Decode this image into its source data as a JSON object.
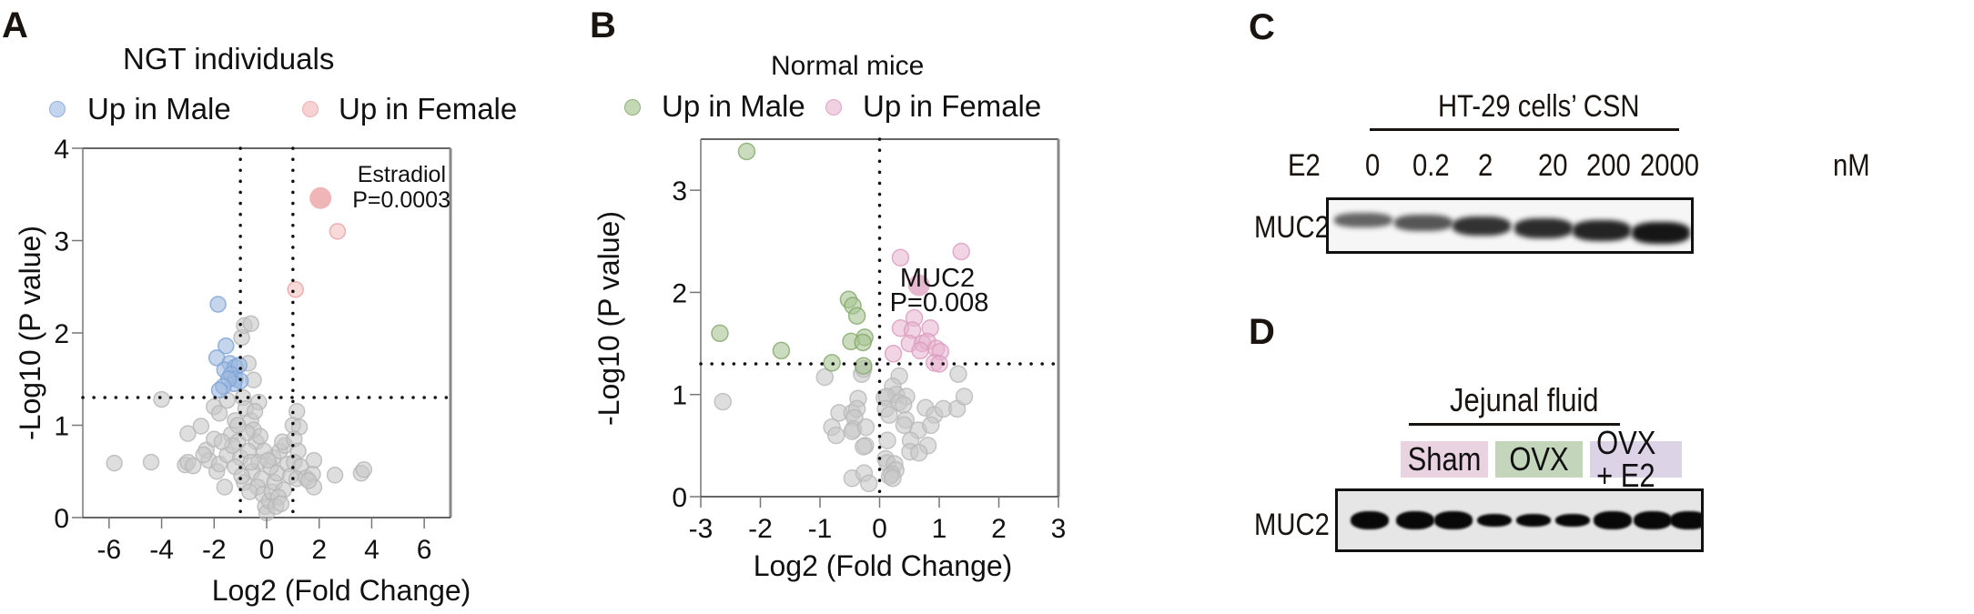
{
  "panels": {
    "A": {
      "letter": "A"
    },
    "B": {
      "letter": "B"
    },
    "C": {
      "letter": "C",
      "header": "HT-29 cells’ CSN",
      "treatment_label": "E2",
      "doses": [
        "0",
        "0.2",
        "2",
        "20",
        "200",
        "2000"
      ],
      "unit": "nM",
      "protein": "MUC2",
      "band_intensity_relative": [
        0.45,
        0.55,
        0.8,
        0.85,
        0.9,
        1.0
      ]
    },
    "D": {
      "letter": "D",
      "header": "Jejunal fluid",
      "protein": "MUC2",
      "groups": [
        {
          "label": "Sham",
          "color": "#ead3e0",
          "lanes": 3
        },
        {
          "label": "OVX",
          "color": "#c3d6bc",
          "lanes": 3
        },
        {
          "label": "OVX + E2",
          "color": "#ddd3e6",
          "lanes": 3
        }
      ],
      "band_intensity_relative": [
        1.0,
        1.0,
        0.95,
        0.55,
        0.5,
        0.5,
        0.95,
        0.95,
        0.95
      ]
    }
  },
  "colors": {
    "male_A": "#9db9e0",
    "female_A": "#f1b5b8",
    "male_B": "#a9c493",
    "female_B": "#e7b2cf",
    "neutral": "#c8c8c8"
  },
  "chart_data": [
    {
      "type": "scatter",
      "title": "NGT individuals",
      "xlabel": "Log2 (Fold Change)",
      "ylabel": "-Log10 (P value)",
      "xlim": [
        -7,
        7
      ],
      "ylim": [
        0,
        4
      ],
      "xticks": [
        "-6",
        "-4",
        "-2",
        "0",
        "2",
        "4",
        "6"
      ],
      "yticks": [
        "0",
        "1",
        "2",
        "3",
        "4"
      ],
      "thresholds": {
        "x": [
          -1,
          1
        ],
        "y": 1.3
      },
      "legend": [
        {
          "name": "Up in Male",
          "color": "#9db9e0"
        },
        {
          "name": "Up in Female",
          "color": "#f1b5b8"
        }
      ],
      "legend_position": "top",
      "annotation": {
        "name": "Estradiol",
        "text": "P=0.0003",
        "x": 2.05,
        "y": 3.46
      },
      "series": [
        {
          "name": "Up in Female",
          "points": [
            [
              2.05,
              3.46,
              "big"
            ],
            [
              2.7,
              3.1
            ],
            [
              1.1,
              2.47
            ]
          ]
        },
        {
          "name": "Up in Male",
          "points": [
            [
              -1.85,
              2.31
            ],
            [
              -1.55,
              1.86
            ],
            [
              -1.9,
              1.73
            ],
            [
              -1.4,
              1.67
            ],
            [
              -1.6,
              1.6
            ],
            [
              -1.2,
              1.63
            ],
            [
              -1.05,
              1.65
            ],
            [
              -1.35,
              1.55
            ],
            [
              -1.2,
              1.5
            ],
            [
              -1.0,
              1.48
            ],
            [
              -1.25,
              1.45
            ],
            [
              -1.45,
              1.5
            ],
            [
              -1.65,
              1.42
            ],
            [
              -1.8,
              1.38
            ]
          ]
        },
        {
          "name": "Not significant",
          "points": [
            [
              -4.0,
              1.28
            ],
            [
              -5.8,
              0.59
            ],
            [
              -4.4,
              0.6
            ],
            [
              -3.1,
              0.57
            ],
            [
              -3.0,
              0.6
            ],
            [
              -2.8,
              0.56
            ],
            [
              -3.0,
              0.91
            ],
            [
              -2.5,
              0.99
            ],
            [
              -2.3,
              0.73
            ],
            [
              -2.2,
              0.62
            ],
            [
              -2.0,
              0.85
            ],
            [
              -1.9,
              0.5
            ],
            [
              -1.8,
              0.58
            ],
            [
              -1.6,
              0.33
            ],
            [
              -1.5,
              0.68
            ],
            [
              -2.0,
              1.2
            ],
            [
              -1.8,
              1.13
            ],
            [
              -1.5,
              1.27
            ],
            [
              -1.35,
              0.9
            ],
            [
              -1.2,
              1.05
            ],
            [
              -1.1,
              0.82
            ],
            [
              -1.0,
              0.65
            ],
            [
              -0.95,
              1.95
            ],
            [
              -0.85,
              2.08
            ],
            [
              -0.6,
              2.1
            ],
            [
              -0.7,
              1.67
            ],
            [
              -0.5,
              1.49
            ],
            [
              -0.9,
              1.3
            ],
            [
              -0.8,
              1.18
            ],
            [
              -0.6,
              1.05
            ],
            [
              -0.5,
              0.95
            ],
            [
              -0.4,
              0.82
            ],
            [
              -0.7,
              0.72
            ],
            [
              -0.3,
              0.6
            ],
            [
              -0.55,
              0.5
            ],
            [
              -0.2,
              0.42
            ],
            [
              -0.85,
              0.38
            ],
            [
              -0.35,
              0.33
            ],
            [
              -0.15,
              0.25
            ],
            [
              -0.05,
              0.12
            ],
            [
              0.0,
              0.05
            ],
            [
              0.1,
              0.18
            ],
            [
              0.2,
              0.28
            ],
            [
              0.3,
              0.38
            ],
            [
              0.4,
              0.48
            ],
            [
              0.15,
              0.55
            ],
            [
              0.25,
              0.65
            ],
            [
              0.5,
              0.72
            ],
            [
              0.7,
              0.78
            ],
            [
              0.6,
              0.82
            ],
            [
              0.8,
              0.58
            ],
            [
              0.9,
              0.45
            ],
            [
              0.65,
              0.3
            ],
            [
              0.45,
              0.22
            ],
            [
              1.0,
              1.0
            ],
            [
              1.15,
              1.15
            ],
            [
              1.25,
              0.98
            ],
            [
              1.05,
              0.85
            ],
            [
              1.2,
              0.72
            ],
            [
              1.05,
              0.6
            ],
            [
              1.3,
              0.55
            ],
            [
              1.15,
              0.42
            ],
            [
              1.5,
              0.43
            ],
            [
              1.8,
              0.62
            ],
            [
              1.75,
              0.47
            ],
            [
              1.8,
              0.33
            ],
            [
              1.6,
              0.4
            ],
            [
              2.6,
              0.46
            ],
            [
              3.6,
              0.48
            ],
            [
              3.7,
              0.52
            ],
            [
              -0.3,
              1.25
            ],
            [
              -0.45,
              1.15
            ],
            [
              -0.25,
              0.88
            ],
            [
              -0.1,
              0.72
            ],
            [
              0.05,
              0.62
            ],
            [
              -0.6,
              0.6
            ],
            [
              -0.75,
              0.92
            ],
            [
              -1.1,
              1.0
            ],
            [
              -1.3,
              0.78
            ],
            [
              -1.7,
              0.82
            ],
            [
              -2.4,
              0.68
            ],
            [
              -1.2,
              0.55
            ],
            [
              -0.95,
              0.45
            ],
            [
              -0.65,
              0.28
            ],
            [
              0.35,
              0.12
            ],
            [
              0.55,
              0.15
            ]
          ]
        }
      ]
    },
    {
      "type": "scatter",
      "title": "Normal mice",
      "xlabel": "Log2 (Fold Change)",
      "ylabel": "-Log10 (P value)",
      "xlim": [
        -3,
        3
      ],
      "ylim": [
        0,
        3.5
      ],
      "xticks": [
        "-3",
        "-2",
        "-1",
        "0",
        "1",
        "2",
        "3"
      ],
      "yticks": [
        "0",
        "1",
        "2",
        "3"
      ],
      "thresholds": {
        "x": [
          0
        ],
        "y": 1.3
      },
      "legend": [
        {
          "name": "Up in Male",
          "color": "#a9c493"
        },
        {
          "name": "Up in Female",
          "color": "#e7b2cf"
        }
      ],
      "legend_position": "top",
      "annotation": {
        "name": "MUC2",
        "text": "P=0.008",
        "x": 0.66,
        "y": 2.07
      },
      "series": [
        {
          "name": "Up in Female",
          "points": [
            [
              0.66,
              2.07,
              "big"
            ],
            [
              0.35,
              2.34
            ],
            [
              1.37,
              2.4
            ],
            [
              0.58,
              1.75
            ],
            [
              0.35,
              1.65
            ],
            [
              0.55,
              1.63
            ],
            [
              0.85,
              1.65
            ],
            [
              0.5,
              1.5
            ],
            [
              0.72,
              1.5
            ],
            [
              0.8,
              1.52
            ],
            [
              0.68,
              1.43
            ],
            [
              0.95,
              1.45
            ],
            [
              1.02,
              1.42
            ],
            [
              0.23,
              1.4
            ],
            [
              0.92,
              1.31
            ],
            [
              1.0,
              1.3
            ]
          ]
        },
        {
          "name": "Up in Male",
          "points": [
            [
              -2.23,
              3.38
            ],
            [
              -2.68,
              1.6
            ],
            [
              -1.65,
              1.43
            ],
            [
              -0.52,
              1.93
            ],
            [
              -0.45,
              1.87
            ],
            [
              -0.38,
              1.77
            ],
            [
              -0.25,
              1.56
            ],
            [
              -0.48,
              1.52
            ],
            [
              -0.28,
              1.51
            ],
            [
              -0.8,
              1.31
            ],
            [
              -0.27,
              1.28
            ]
          ]
        },
        {
          "name": "Not significant",
          "points": [
            [
              -2.63,
              0.93
            ],
            [
              -0.92,
              1.17
            ],
            [
              -0.3,
              1.2
            ],
            [
              -0.27,
              1.25
            ],
            [
              -0.36,
              0.96
            ],
            [
              -0.68,
              0.82
            ],
            [
              -0.46,
              0.82
            ],
            [
              -0.38,
              0.86
            ],
            [
              -0.42,
              0.77
            ],
            [
              -0.8,
              0.68
            ],
            [
              -0.73,
              0.6
            ],
            [
              -0.44,
              0.66
            ],
            [
              -0.46,
              0.64
            ],
            [
              -0.23,
              0.68
            ],
            [
              -0.24,
              0.5
            ],
            [
              -0.27,
              0.49
            ],
            [
              -0.46,
              0.18
            ],
            [
              -0.26,
              0.23
            ],
            [
              -0.18,
              0.13
            ],
            [
              0.33,
              1.18
            ],
            [
              0.22,
              1.08
            ],
            [
              0.28,
              1.0
            ],
            [
              0.08,
              0.97
            ],
            [
              0.12,
              0.98
            ],
            [
              0.45,
              0.98
            ],
            [
              0.32,
              0.92
            ],
            [
              0.4,
              0.9
            ],
            [
              0.1,
              0.86
            ],
            [
              0.16,
              0.8
            ],
            [
              0.44,
              0.75
            ],
            [
              0.41,
              0.7
            ],
            [
              0.65,
              0.65
            ],
            [
              0.77,
              0.87
            ],
            [
              0.92,
              0.8
            ],
            [
              0.86,
              0.7
            ],
            [
              1.07,
              0.86
            ],
            [
              1.3,
              0.86
            ],
            [
              1.42,
              0.98
            ],
            [
              1.32,
              1.2
            ],
            [
              0.52,
              0.55
            ],
            [
              0.81,
              0.5
            ],
            [
              0.51,
              0.44
            ],
            [
              0.66,
              0.43
            ],
            [
              0.13,
              0.55
            ],
            [
              0.1,
              0.37
            ],
            [
              0.13,
              0.33
            ],
            [
              0.25,
              0.32
            ],
            [
              0.27,
              0.26
            ],
            [
              0.2,
              0.22
            ],
            [
              0.17,
              0.2
            ],
            [
              0.22,
              0.18
            ]
          ]
        }
      ]
    }
  ]
}
